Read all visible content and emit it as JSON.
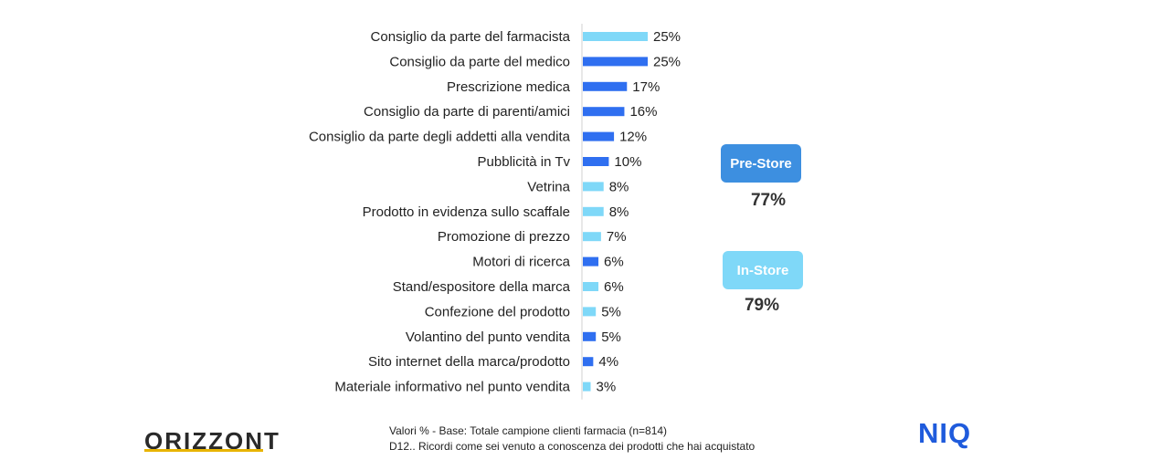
{
  "chart_data": {
    "type": "bar",
    "orientation": "horizontal",
    "categories": [
      "Consiglio da parte del farmacista",
      "Consiglio da parte del medico",
      "Prescrizione medica",
      "Consiglio da parte di parenti/amici",
      "Consiglio da parte degli addetti alla vendita",
      "Pubblicità in Tv",
      "Vetrina",
      "Prodotto in evidenza sullo scaffale",
      "Promozione di prezzo",
      "Motori di ricerca",
      "Stand/espositore della marca",
      "Confezione del prodotto",
      "Volantino del punto vendita",
      "Sito internet della marca/prodotto",
      "Materiale informativo nel punto vendita"
    ],
    "values": [
      25,
      25,
      17,
      16,
      12,
      10,
      8,
      8,
      7,
      6,
      6,
      5,
      5,
      4,
      3
    ],
    "value_labels": [
      "25%",
      "25%",
      "17%",
      "16%",
      "12%",
      "10%",
      "8%",
      "8%",
      "7%",
      "6%",
      "6%",
      "5%",
      "5%",
      "4%",
      "3%"
    ],
    "groups": [
      "In-Store",
      "Pre-Store",
      "Pre-Store",
      "Pre-Store",
      "Pre-Store",
      "Pre-Store",
      "In-Store",
      "In-Store",
      "In-Store",
      "Pre-Store",
      "In-Store",
      "In-Store",
      "Pre-Store",
      "Pre-Store",
      "In-Store"
    ],
    "group_colors": {
      "Pre-Store": "#2f6ff0",
      "In-Store": "#7fd8f8"
    },
    "xlim": [
      0,
      25
    ],
    "grid": false
  },
  "legend": {
    "pre_store": {
      "label": "Pre-Store",
      "value": "77%",
      "color": "#3d8fe0"
    },
    "in_store": {
      "label": "In-Store",
      "value": "79%",
      "color": "#7fd8f8"
    }
  },
  "footer": {
    "line1": "Valori % - Base: Totale campione clienti farmacia (n=814)",
    "line2": "D12.. Ricordi come sei venuto  a conoscenza dei prodotti che hai acquistato"
  },
  "logos": {
    "left": "ORIZZONTI",
    "right": "NIQ"
  }
}
